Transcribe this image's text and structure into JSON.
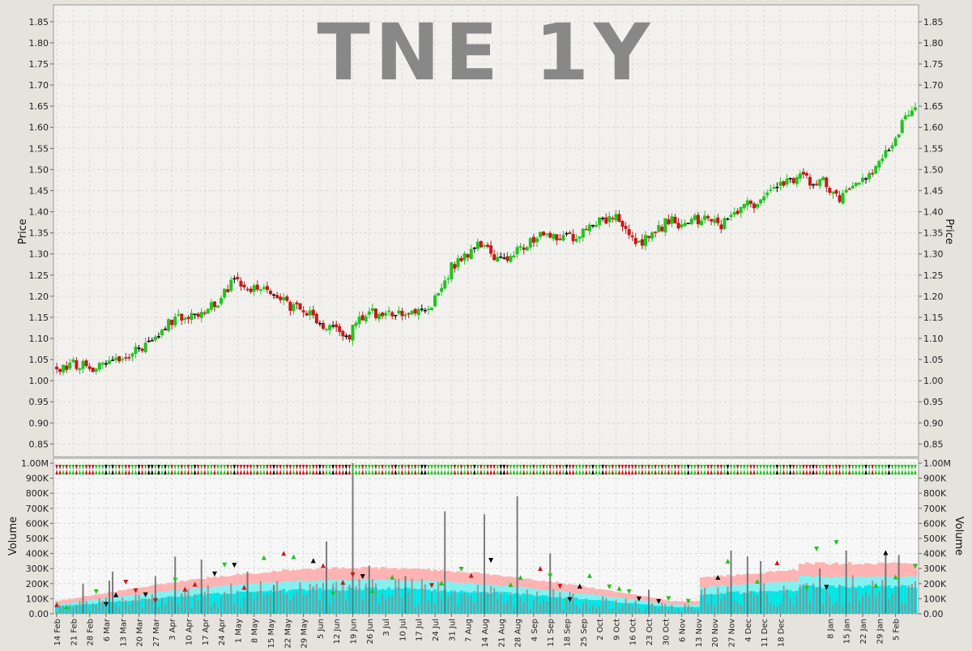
{
  "chart_data": [
    {
      "type": "candlestick",
      "title": "TNE 1Y",
      "ylabel": "Price",
      "ylim": [
        0.82,
        1.89
      ],
      "yticks": [
        "0.85",
        "0.90",
        "0.95",
        "1.00",
        "1.05",
        "1.10",
        "1.15",
        "1.20",
        "1.25",
        "1.30",
        "1.35",
        "1.40",
        "1.45",
        "1.50",
        "1.55",
        "1.60",
        "1.65",
        "1.70",
        "1.75",
        "1.80",
        "1.85"
      ],
      "x_labels": [
        "14 Feb",
        "21 Feb",
        "28 Feb",
        "6 Mar",
        "13 Mar",
        "20 Mar",
        "27 Mar",
        "3 Apr",
        "10 Apr",
        "17 Apr",
        "24 Apr",
        "1 May",
        "8 May",
        "15 May",
        "22 May",
        "29 May",
        "5 Jun",
        "12 Jun",
        "19 Jun",
        "26 Jun",
        "3 Jul",
        "10 Jul",
        "17 Jul",
        "24 Jul",
        "31 Jul",
        "7 Aug",
        "14 Aug",
        "21 Aug",
        "28 Aug",
        "4 Sep",
        "11 Sep",
        "18 Sep",
        "25 Sep",
        "2 Oct",
        "9 Oct",
        "16 Oct",
        "23 Oct",
        "30 Oct",
        "6 Nov",
        "13 Nov",
        "20 Nov",
        "27 Nov",
        "4 Dec",
        "11 Dec",
        "18 Dec",
        "8 Jan",
        "15 Jan",
        "22 Jan",
        "29 Jan",
        "5 Feb"
      ],
      "label_day_index": [
        0,
        5,
        10,
        15,
        20,
        25,
        30,
        35,
        40,
        45,
        50,
        55,
        60,
        65,
        70,
        75,
        80,
        85,
        90,
        95,
        100,
        105,
        110,
        115,
        120,
        125,
        130,
        135,
        140,
        145,
        150,
        155,
        160,
        165,
        170,
        175,
        180,
        185,
        190,
        195,
        200,
        205,
        210,
        215,
        220,
        235,
        240,
        245,
        250,
        255
      ],
      "days": 262,
      "close_keypoints": [
        [
          0,
          1.03
        ],
        [
          6,
          1.04
        ],
        [
          12,
          1.03
        ],
        [
          18,
          1.05
        ],
        [
          24,
          1.07
        ],
        [
          30,
          1.1
        ],
        [
          36,
          1.15
        ],
        [
          42,
          1.15
        ],
        [
          48,
          1.18
        ],
        [
          54,
          1.24
        ],
        [
          58,
          1.22
        ],
        [
          64,
          1.21
        ],
        [
          70,
          1.18
        ],
        [
          76,
          1.16
        ],
        [
          80,
          1.14
        ],
        [
          84,
          1.12
        ],
        [
          88,
          1.1
        ],
        [
          92,
          1.14
        ],
        [
          96,
          1.16
        ],
        [
          100,
          1.16
        ],
        [
          104,
          1.16
        ],
        [
          108,
          1.17
        ],
        [
          112,
          1.17
        ],
        [
          116,
          1.2
        ],
        [
          120,
          1.27
        ],
        [
          124,
          1.29
        ],
        [
          128,
          1.32
        ],
        [
          132,
          1.3
        ],
        [
          136,
          1.29
        ],
        [
          140,
          1.31
        ],
        [
          146,
          1.34
        ],
        [
          152,
          1.34
        ],
        [
          158,
          1.34
        ],
        [
          162,
          1.36
        ],
        [
          166,
          1.38
        ],
        [
          170,
          1.39
        ],
        [
          174,
          1.34
        ],
        [
          178,
          1.33
        ],
        [
          182,
          1.35
        ],
        [
          186,
          1.38
        ],
        [
          190,
          1.37
        ],
        [
          194,
          1.38
        ],
        [
          198,
          1.39
        ],
        [
          202,
          1.37
        ],
        [
          206,
          1.4
        ],
        [
          210,
          1.42
        ],
        [
          214,
          1.42
        ],
        [
          218,
          1.45
        ],
        [
          222,
          1.48
        ],
        [
          226,
          1.48
        ],
        [
          230,
          1.47
        ],
        [
          234,
          1.47
        ],
        [
          238,
          1.42
        ],
        [
          242,
          1.47
        ],
        [
          246,
          1.47
        ],
        [
          250,
          1.52
        ],
        [
          254,
          1.56
        ],
        [
          258,
          1.63
        ],
        [
          261,
          1.65
        ]
      ]
    },
    {
      "type": "bar",
      "ylabel": "Volume",
      "ylim": [
        0,
        1000000
      ],
      "yticks": [
        "0.00",
        "100K",
        "200K",
        "300K",
        "400K",
        "500K",
        "600K",
        "700K",
        "800K",
        "900K",
        "1.00M"
      ],
      "tick_values": [
        0,
        100000,
        200000,
        300000,
        400000,
        500000,
        600000,
        700000,
        800000,
        900000,
        1000000
      ],
      "spikes": [
        [
          8,
          200000
        ],
        [
          16,
          220000
        ],
        [
          17,
          280000
        ],
        [
          30,
          250000
        ],
        [
          36,
          380000
        ],
        [
          44,
          360000
        ],
        [
          58,
          280000
        ],
        [
          66,
          190000
        ],
        [
          82,
          480000
        ],
        [
          90,
          1000000
        ],
        [
          95,
          320000
        ],
        [
          106,
          250000
        ],
        [
          118,
          680000
        ],
        [
          130,
          660000
        ],
        [
          140,
          780000
        ],
        [
          150,
          400000
        ],
        [
          180,
          160000
        ],
        [
          205,
          420000
        ],
        [
          210,
          380000
        ],
        [
          214,
          350000
        ],
        [
          232,
          300000
        ],
        [
          240,
          420000
        ],
        [
          252,
          400000
        ],
        [
          256,
          390000
        ]
      ]
    }
  ],
  "colors": {
    "up": "#22c41d",
    "down": "#c41a1a",
    "flat": "#000000",
    "avg_long": "#ffb3b3",
    "avg_mid": "#80f2f2",
    "avg_short": "#00e6e6",
    "title": "#888888",
    "plot_bg": "#f2f1ee",
    "grid": "#d9d9d9"
  }
}
